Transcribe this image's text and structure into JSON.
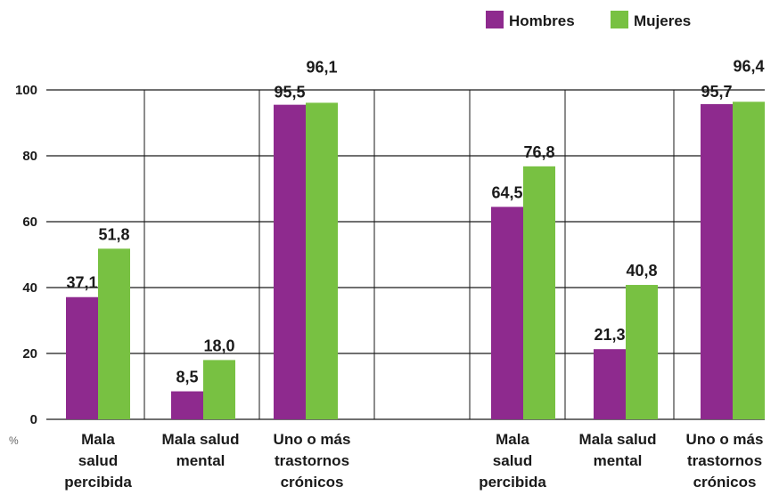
{
  "chart_data": {
    "type": "bar",
    "unit_label": "%",
    "ylim": [
      0,
      100
    ],
    "yticks": [
      0,
      20,
      40,
      60,
      80,
      100
    ],
    "grid": true,
    "legend_position": "top-right",
    "colors": {
      "Hombres": "#8e2a8e",
      "Mujeres": "#78c142"
    },
    "series": [
      {
        "name": "Hombres",
        "values": [
          37.1,
          8.5,
          95.5,
          64.5,
          21.3,
          95.7
        ],
        "labels": [
          "37,1",
          "8,5",
          "95,5",
          "64,5",
          "21,3",
          "95,7"
        ]
      },
      {
        "name": "Mujeres",
        "values": [
          51.8,
          18.0,
          96.1,
          76.8,
          40.8,
          96.4
        ],
        "labels": [
          "51,8",
          "18,0",
          "96,1",
          "76,8",
          "40,8",
          "96,4"
        ]
      }
    ],
    "categories": [
      [
        "Mala",
        "salud",
        "percibida"
      ],
      [
        "Mala salud",
        "mental"
      ],
      [
        "Uno o más",
        "trastornos",
        "crónicos"
      ],
      [
        "Mala",
        "salud",
        "percibida"
      ],
      [
        "Mala salud",
        "mental"
      ],
      [
        "Uno o más",
        "trastornos",
        "crónicos"
      ]
    ]
  }
}
